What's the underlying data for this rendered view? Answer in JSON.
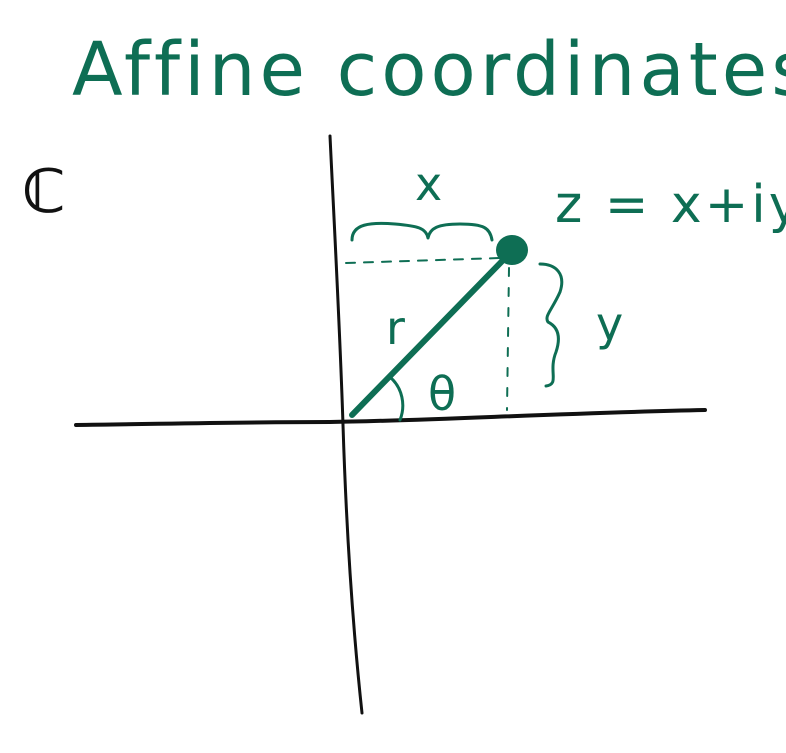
{
  "title": "Affine coordinates",
  "set_symbol": "ℂ",
  "equation": "z = x+iy",
  "labels": {
    "x": "x",
    "y": "y",
    "r": "r",
    "theta": "θ"
  },
  "colors": {
    "ink_green": "#0e6e54",
    "ink_black": "#111111",
    "background": "#ffffff"
  }
}
